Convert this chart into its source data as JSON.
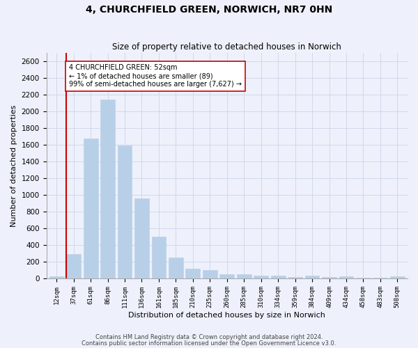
{
  "title_line1": "4, CHURCHFIELD GREEN, NORWICH, NR7 0HN",
  "title_line2": "Size of property relative to detached houses in Norwich",
  "xlabel": "Distribution of detached houses by size in Norwich",
  "ylabel": "Number of detached properties",
  "categories": [
    "12sqm",
    "37sqm",
    "61sqm",
    "86sqm",
    "111sqm",
    "136sqm",
    "161sqm",
    "185sqm",
    "210sqm",
    "235sqm",
    "260sqm",
    "285sqm",
    "310sqm",
    "334sqm",
    "359sqm",
    "384sqm",
    "409sqm",
    "434sqm",
    "458sqm",
    "483sqm",
    "508sqm"
  ],
  "values": [
    25,
    295,
    1670,
    2140,
    1590,
    960,
    500,
    250,
    120,
    100,
    50,
    50,
    35,
    35,
    20,
    30,
    15,
    25,
    10,
    10,
    25
  ],
  "bar_color": "#b8cfe8",
  "bar_edge_color": "#b8cfe8",
  "grid_color": "#d0d8ea",
  "vline_color": "#cc0000",
  "annotation_text": "4 CHURCHFIELD GREEN: 52sqm\n← 1% of detached houses are smaller (89)\n99% of semi-detached houses are larger (7,627) →",
  "annotation_box_color": "#ffffff",
  "annotation_box_edge_color": "#cc0000",
  "ylim": [
    0,
    2700
  ],
  "yticks": [
    0,
    200,
    400,
    600,
    800,
    1000,
    1200,
    1400,
    1600,
    1800,
    2000,
    2200,
    2400,
    2600
  ],
  "footer_line1": "Contains HM Land Registry data © Crown copyright and database right 2024.",
  "footer_line2": "Contains public sector information licensed under the Open Government Licence v3.0.",
  "bg_color": "#eef1fb",
  "plot_bg_color": "#eef1fb"
}
